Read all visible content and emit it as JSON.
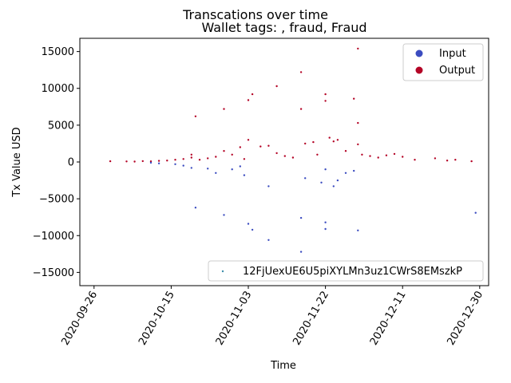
{
  "chart_data": {
    "type": "scatter",
    "title": "Transcations over time",
    "subtitle": "Wallet tags: , fraud, Fraud",
    "xlabel": "Time",
    "ylabel": "Tx Value USD",
    "xlim": [
      "2020-09-26",
      "2020-12-30"
    ],
    "ylim": [
      -16800,
      16800
    ],
    "x_ticks": [
      "2020-09-26",
      "2020-10-15",
      "2020-11-03",
      "2020-11-22",
      "2020-12-11",
      "2020-12-30"
    ],
    "y_ticks": [
      -15000,
      -10000,
      -5000,
      0,
      5000,
      10000,
      15000
    ],
    "legend_upper": {
      "position": "top-right",
      "entries": [
        {
          "label": "Input",
          "color": "#3b4cc0"
        },
        {
          "label": "Output",
          "color": "#b40426"
        }
      ]
    },
    "legend_lower": {
      "position": "bottom-right",
      "entries": [
        {
          "label": "12FjUexUE6U5piXYLMn3uz1CWrS8EMszkP",
          "color": "#3b8eaa"
        }
      ]
    },
    "series": [
      {
        "name": "Output",
        "color": "#b40426",
        "points": [
          [
            "2020-09-30",
            100
          ],
          [
            "2020-10-04",
            80
          ],
          [
            "2020-10-06",
            50
          ],
          [
            "2020-10-08",
            120
          ],
          [
            "2020-10-10",
            90
          ],
          [
            "2020-10-12",
            150
          ],
          [
            "2020-10-14",
            200
          ],
          [
            "2020-10-16",
            300
          ],
          [
            "2020-10-18",
            400
          ],
          [
            "2020-10-20",
            600
          ],
          [
            "2020-10-20",
            1000
          ],
          [
            "2020-10-21",
            6200
          ],
          [
            "2020-10-22",
            300
          ],
          [
            "2020-10-24",
            500
          ],
          [
            "2020-10-26",
            700
          ],
          [
            "2020-10-28",
            7200
          ],
          [
            "2020-10-28",
            1500
          ],
          [
            "2020-10-30",
            1000
          ],
          [
            "2020-11-01",
            2000
          ],
          [
            "2020-11-02",
            400
          ],
          [
            "2020-11-03",
            8400
          ],
          [
            "2020-11-03",
            3000
          ],
          [
            "2020-11-04",
            9200
          ],
          [
            "2020-11-06",
            2100
          ],
          [
            "2020-11-08",
            2200
          ],
          [
            "2020-11-10",
            10300
          ],
          [
            "2020-11-10",
            1200
          ],
          [
            "2020-11-12",
            800
          ],
          [
            "2020-11-14",
            600
          ],
          [
            "2020-11-16",
            7200
          ],
          [
            "2020-11-16",
            12200
          ],
          [
            "2020-11-17",
            2500
          ],
          [
            "2020-11-19",
            2700
          ],
          [
            "2020-11-20",
            1000
          ],
          [
            "2020-11-22",
            9200
          ],
          [
            "2020-11-22",
            8300
          ],
          [
            "2020-11-23",
            3300
          ],
          [
            "2020-11-24",
            2800
          ],
          [
            "2020-11-25",
            3000
          ],
          [
            "2020-11-27",
            1500
          ],
          [
            "2020-11-29",
            8600
          ],
          [
            "2020-11-30",
            15400
          ],
          [
            "2020-11-30",
            5300
          ],
          [
            "2020-11-30",
            2400
          ],
          [
            "2020-12-01",
            1000
          ],
          [
            "2020-12-03",
            800
          ],
          [
            "2020-12-05",
            600
          ],
          [
            "2020-12-07",
            900
          ],
          [
            "2020-12-09",
            1100
          ],
          [
            "2020-12-11",
            700
          ],
          [
            "2020-12-14",
            300
          ],
          [
            "2020-12-19",
            500
          ],
          [
            "2020-12-22",
            200
          ],
          [
            "2020-12-24",
            300
          ],
          [
            "2020-12-28",
            100
          ]
        ]
      },
      {
        "name": "Input",
        "color": "#3b4cc0",
        "points": [
          [
            "2020-10-10",
            -100
          ],
          [
            "2020-10-12",
            -200
          ],
          [
            "2020-10-16",
            -300
          ],
          [
            "2020-10-18",
            -500
          ],
          [
            "2020-10-20",
            -800
          ],
          [
            "2020-10-21",
            -6200
          ],
          [
            "2020-10-24",
            -900
          ],
          [
            "2020-10-26",
            -1500
          ],
          [
            "2020-10-28",
            -7200
          ],
          [
            "2020-10-30",
            -1000
          ],
          [
            "2020-11-01",
            -600
          ],
          [
            "2020-11-02",
            -1800
          ],
          [
            "2020-11-03",
            -8400
          ],
          [
            "2020-11-04",
            -9200
          ],
          [
            "2020-11-08",
            -3300
          ],
          [
            "2020-11-08",
            -10600
          ],
          [
            "2020-11-16",
            -7600
          ],
          [
            "2020-11-16",
            -12200
          ],
          [
            "2020-11-17",
            -2200
          ],
          [
            "2020-11-21",
            -2800
          ],
          [
            "2020-11-22",
            -1000
          ],
          [
            "2020-11-22",
            -8200
          ],
          [
            "2020-11-22",
            -9100
          ],
          [
            "2020-11-24",
            -3300
          ],
          [
            "2020-11-25",
            -2500
          ],
          [
            "2020-11-27",
            -1500
          ],
          [
            "2020-11-29",
            -1200
          ],
          [
            "2020-11-30",
            -9300
          ],
          [
            "2020-12-29",
            -6900
          ]
        ]
      }
    ]
  }
}
